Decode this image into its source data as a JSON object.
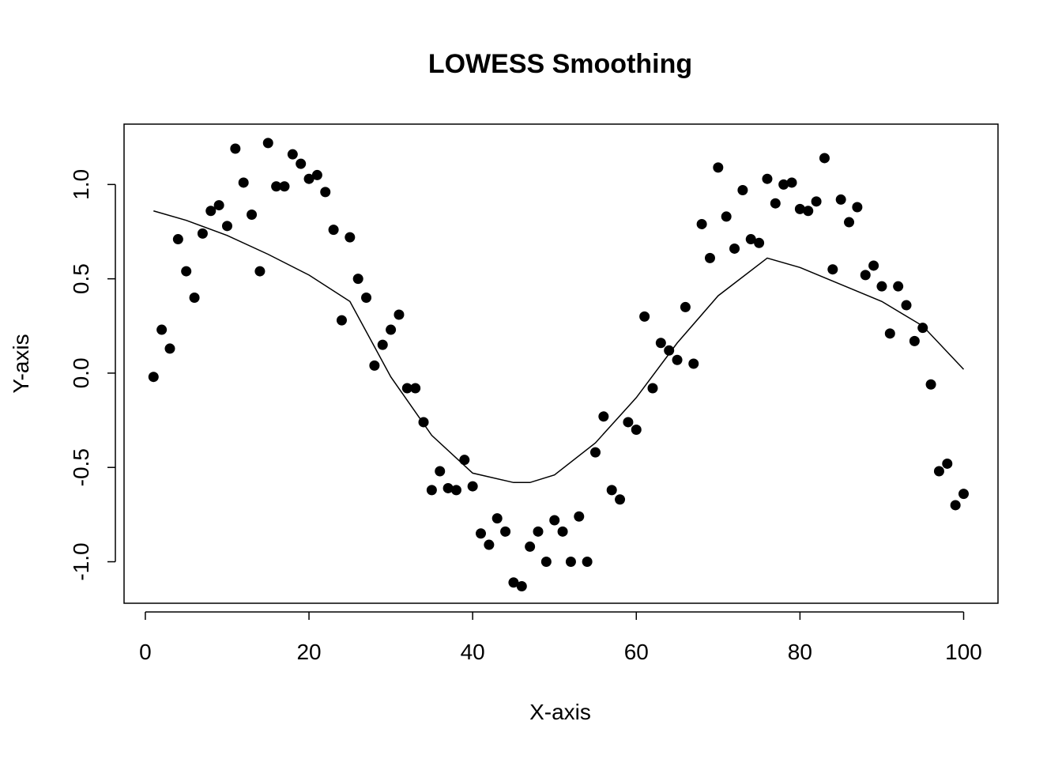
{
  "chart_data": {
    "type": "scatter",
    "title": "LOWESS Smoothing",
    "xlabel": "X-axis",
    "ylabel": "Y-axis",
    "xlim": [
      -2.6,
      104.2
    ],
    "ylim": [
      -1.22,
      1.32
    ],
    "x_ticks": [
      0,
      20,
      40,
      60,
      80,
      100
    ],
    "x_tick_labels": [
      "0",
      "20",
      "40",
      "60",
      "80",
      "100"
    ],
    "y_ticks": [
      -1.0,
      -0.5,
      0.0,
      0.5,
      1.0
    ],
    "y_tick_labels": [
      "-1.0",
      "-0.5",
      "0.0",
      "0.5",
      "1.0"
    ],
    "grid": false,
    "series": [
      {
        "type": "scatter",
        "x": [
          1,
          2,
          3,
          4,
          5,
          6,
          7,
          8,
          9,
          10,
          11,
          12,
          13,
          14,
          15,
          16,
          17,
          18,
          19,
          20,
          21,
          22,
          23,
          24,
          25,
          26,
          27,
          28,
          29,
          30,
          31,
          32,
          33,
          34,
          35,
          36,
          37,
          38,
          39,
          40,
          41,
          42,
          43,
          44,
          45,
          46,
          47,
          48,
          49,
          50,
          51,
          52,
          53,
          54,
          55,
          56,
          57,
          58,
          59,
          60,
          61,
          62,
          63,
          64,
          65,
          66,
          67,
          68,
          69,
          70,
          71,
          72,
          73,
          74,
          75,
          76,
          77,
          78,
          79,
          80,
          81,
          82,
          83,
          84,
          85,
          86,
          87,
          88,
          89,
          90,
          91,
          92,
          93,
          94,
          95,
          96,
          97,
          98,
          99,
          100
        ],
        "y": [
          -0.02,
          0.23,
          0.13,
          0.71,
          0.54,
          0.4,
          0.74,
          0.86,
          0.89,
          0.78,
          1.19,
          1.01,
          0.84,
          0.54,
          1.22,
          0.99,
          0.99,
          1.16,
          1.11,
          1.03,
          1.05,
          0.96,
          0.76,
          0.28,
          0.72,
          0.5,
          0.4,
          0.04,
          0.15,
          0.23,
          0.31,
          -0.08,
          -0.08,
          -0.26,
          -0.62,
          -0.52,
          -0.61,
          -0.62,
          -0.46,
          -0.6,
          -0.85,
          -0.91,
          -0.77,
          -0.84,
          -1.11,
          -1.13,
          -0.92,
          -0.84,
          -1.0,
          -0.78,
          -0.84,
          -1.0,
          -0.76,
          -1.0,
          -0.42,
          -0.23,
          -0.62,
          -0.67,
          -0.26,
          -0.3,
          0.3,
          -0.08,
          0.16,
          0.12,
          0.07,
          0.35,
          0.05,
          0.79,
          0.61,
          1.09,
          0.83,
          0.66,
          0.97,
          0.71,
          0.69,
          1.03,
          0.9,
          1.0,
          1.01,
          0.87,
          0.86,
          0.91,
          1.14,
          0.55,
          0.92,
          0.8,
          0.88,
          0.52,
          0.57,
          0.46,
          0.21,
          0.46,
          0.36,
          0.17,
          0.24,
          -0.06,
          -0.52,
          -0.48,
          -0.7,
          -0.64
        ]
      },
      {
        "type": "line",
        "x": [
          1,
          5,
          10,
          15,
          20,
          25,
          30,
          35,
          40,
          45,
          47,
          50,
          55,
          60,
          65,
          70,
          76,
          80,
          85,
          90,
          95,
          100
        ],
        "y": [
          0.86,
          0.81,
          0.73,
          0.63,
          0.52,
          0.38,
          -0.02,
          -0.33,
          -0.53,
          -0.58,
          -0.58,
          -0.54,
          -0.37,
          -0.13,
          0.16,
          0.41,
          0.61,
          0.56,
          0.47,
          0.38,
          0.25,
          0.02
        ]
      }
    ]
  }
}
